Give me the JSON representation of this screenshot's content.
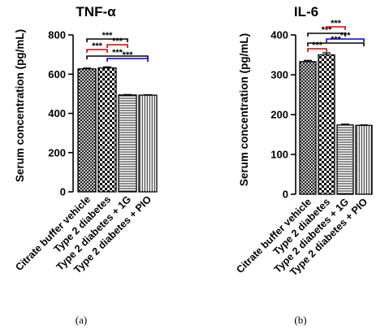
{
  "chart_data": [
    {
      "type": "bar",
      "title": "TNF-α",
      "ylabel": "Serum concentration (pg/mL)",
      "xlabel": "",
      "ylim": [
        0,
        800
      ],
      "yticks": [
        0,
        200,
        400,
        600,
        800
      ],
      "categories": [
        "Citrate buffer vehicle",
        "Type 2 diabetes",
        "Type 2 diabetes + 1G",
        "Type 2 diabetes + PIO"
      ],
      "values": [
        627,
        632,
        494,
        493
      ],
      "errors": [
        4,
        5,
        2,
        2
      ],
      "patterns": [
        "crosshatch",
        "checker",
        "horizontal",
        "vertical"
      ],
      "caption": "(a)",
      "significance": [
        {
          "from": 0,
          "to": 1,
          "label": "***",
          "color": "#d40000"
        },
        {
          "from": 0,
          "to": 2,
          "label": "***",
          "color": "#000000"
        },
        {
          "from": 0,
          "to": 3,
          "label": "***",
          "color": "#000000"
        },
        {
          "from": 1,
          "to": 2,
          "label": "***",
          "color": "#d40000"
        },
        {
          "from": 1,
          "to": 3,
          "label": "***",
          "color": "#0000cc"
        }
      ]
    },
    {
      "type": "bar",
      "title": "IL-6",
      "ylabel": "Serum concentration (pg/mL)",
      "xlabel": "",
      "ylim": [
        0,
        400
      ],
      "yticks": [
        0,
        100,
        200,
        300,
        400
      ],
      "categories": [
        "Citrate buffer vehicle",
        "Type 2 diabetes",
        "Type 2 diabetes + 1G",
        "Type 2 diabetes + PIO"
      ],
      "values": [
        333,
        350,
        174,
        173
      ],
      "errors": [
        3,
        5,
        2,
        1
      ],
      "patterns": [
        "crosshatch",
        "checker",
        "horizontal",
        "vertical"
      ],
      "caption": "(b)",
      "significance": [
        {
          "from": 0,
          "to": 1,
          "label": "***",
          "color": "#d40000"
        },
        {
          "from": 0,
          "to": 2,
          "label": "***",
          "color": "#000000"
        },
        {
          "from": 0,
          "to": 3,
          "label": "***",
          "color": "#000000"
        },
        {
          "from": 1,
          "to": 2,
          "label": "***",
          "color": "#d40000"
        },
        {
          "from": 1,
          "to": 3,
          "label": "***",
          "color": "#0000cc"
        }
      ]
    }
  ]
}
